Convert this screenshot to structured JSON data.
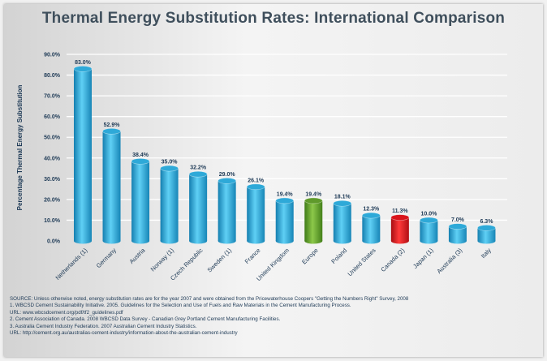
{
  "chart_data": {
    "type": "bar",
    "title": "Thermal Energy Substitution Rates: International Comparison",
    "ylabel": "Percentage Thermal Energy Substitution",
    "xlabel": "",
    "ylim": [
      0,
      90
    ],
    "y_ticks": [
      "0.0%",
      "10.0%",
      "20.0%",
      "30.0%",
      "40.0%",
      "50.0%",
      "60.0%",
      "70.0%",
      "80.0%",
      "90.0%"
    ],
    "grid": true,
    "categories": [
      "Netherlands (1)",
      "Germany",
      "Austria",
      "Norway (1)",
      "Czech Republic",
      "Sweden (1)",
      "France",
      "United Kingdom",
      "Europe",
      "Poland",
      "United States",
      "Canada (2)",
      "Japan (1)",
      "Australia (3)",
      "Italy"
    ],
    "values": [
      83.0,
      52.9,
      38.4,
      35.0,
      32.2,
      29.0,
      26.1,
      19.4,
      19.4,
      18.1,
      12.3,
      11.3,
      10.0,
      7.0,
      6.3
    ],
    "value_labels": [
      "83.0%",
      "52.9%",
      "38.4%",
      "35.0%",
      "32.2%",
      "29.0%",
      "26.1%",
      "19.4%",
      "19.4%",
      "18.1%",
      "12.3%",
      "11.3%",
      "10.0%",
      "7.0%",
      "6.3%"
    ],
    "colors": {
      "default": "#2ea9d8",
      "Europe": "#5f9a2b",
      "Canada (2)": "#d9141b"
    }
  },
  "notes": [
    "SOURCE: Unless otherwise noted, energy substitution rates are for the year 2007 and were obtained from the Pricewaterhouse Coopers \"Getting the Numbers Right\" Survey, 2008",
    "1. WBCSD Cement Sustainability Initiative. 2005. Guidelines for the Selection and Use of Fuels and Raw Materials in the Cement Manufacturing Process.",
    "   URL: www.wbcsdcement.org/pdf/tf2_guidelines.pdf",
    "2. Cement Association of Canada. 2008 WBCSD Data Survey - Canadian Grey Portland Cement Manufacturing Facilities.",
    "3. Australia Cement Industry Federation. 2007 Australian Cement Industry Statistics.",
    "   URL: http://cement.org.au/australias-cement-industry/information-about-the-australian-cement-industry"
  ]
}
